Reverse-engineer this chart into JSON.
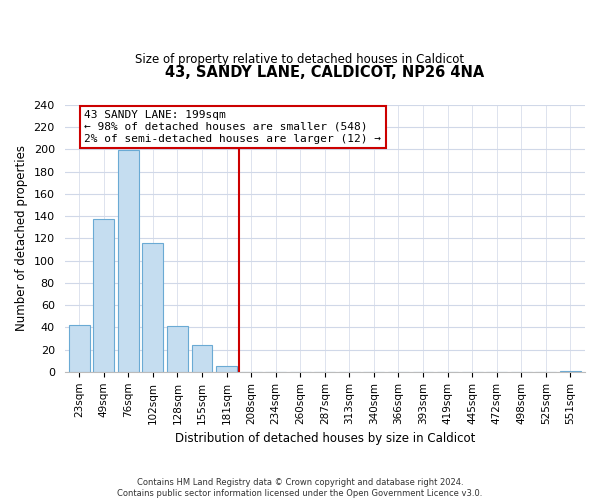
{
  "title": "43, SANDY LANE, CALDICOT, NP26 4NA",
  "subtitle": "Size of property relative to detached houses in Caldicot",
  "xlabel": "Distribution of detached houses by size in Caldicot",
  "ylabel": "Number of detached properties",
  "bin_labels": [
    "23sqm",
    "49sqm",
    "76sqm",
    "102sqm",
    "128sqm",
    "155sqm",
    "181sqm",
    "208sqm",
    "234sqm",
    "260sqm",
    "287sqm",
    "313sqm",
    "340sqm",
    "366sqm",
    "393sqm",
    "419sqm",
    "445sqm",
    "472sqm",
    "498sqm",
    "525sqm",
    "551sqm"
  ],
  "bar_heights": [
    42,
    137,
    199,
    116,
    41,
    24,
    5,
    0,
    0,
    0,
    0,
    0,
    0,
    0,
    0,
    0,
    0,
    0,
    0,
    0,
    1
  ],
  "bar_color": "#c5ddf0",
  "bar_edge_color": "#6aaad4",
  "vline_x": 7.0,
  "vline_color": "#cc0000",
  "annotation_line1": "43 SANDY LANE: 199sqm",
  "annotation_line2": "← 98% of detached houses are smaller (548)",
  "annotation_line3": "2% of semi-detached houses are larger (12) →",
  "annotation_box_color": "#ffffff",
  "annotation_box_edge_color": "#cc0000",
  "ylim": [
    0,
    240
  ],
  "yticks": [
    0,
    20,
    40,
    60,
    80,
    100,
    120,
    140,
    160,
    180,
    200,
    220,
    240
  ],
  "footer_line1": "Contains HM Land Registry data © Crown copyright and database right 2024.",
  "footer_line2": "Contains public sector information licensed under the Open Government Licence v3.0.",
  "background_color": "#ffffff",
  "grid_color": "#d0d8e8"
}
